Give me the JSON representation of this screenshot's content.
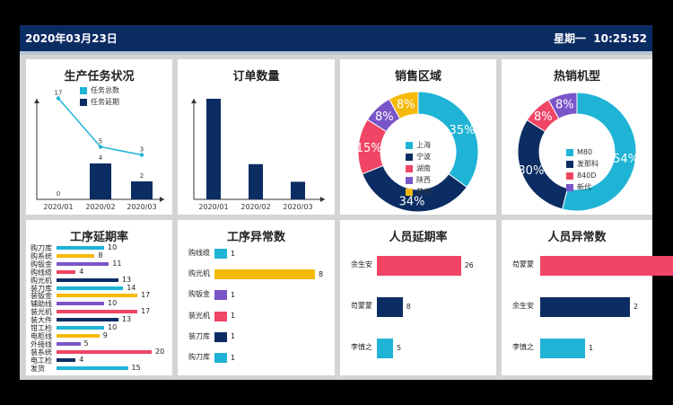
{
  "header": {
    "date": "2020年03月23日",
    "time": "星期一  10:25:52"
  },
  "colors": {
    "cyan": "#1fb3d6",
    "navy": "#0c2d63",
    "purple": "#7a55c8",
    "pink": "#f04565",
    "yellow": "#f5b90a",
    "gray": "#9b9b9b"
  },
  "chart_data": [
    {
      "type": "bar",
      "title": "生产任务状况",
      "categories": [
        "2020/01",
        "2020/02",
        "2020/03"
      ],
      "series": [
        {
          "name": "任务总数",
          "values": [
            17,
            5,
            3
          ],
          "render": "line"
        },
        {
          "name": "任务延期",
          "values": [
            0,
            4,
            2
          ],
          "render": "bar"
        }
      ]
    },
    {
      "type": "bar",
      "title": "订单数量",
      "categories": [
        "2020/01",
        "2020/02",
        "2020/03"
      ],
      "values": [
        20,
        7,
        3.5
      ]
    },
    {
      "type": "pie",
      "title": "销售区域",
      "labels": [
        "上海",
        "宁波",
        "湖南",
        "陕西",
        "其他"
      ],
      "values": [
        35,
        34,
        15,
        8,
        8
      ]
    },
    {
      "type": "pie",
      "title": "热销机型",
      "labels": [
        "M80",
        "发那科",
        "840D",
        "新代"
      ],
      "values": [
        54,
        30,
        8,
        8
      ]
    },
    {
      "type": "bar",
      "title": "工序延期率",
      "categories": [
        "购刀库",
        "购系统",
        "购钣金",
        "购线缆",
        "购光机",
        "装刀库",
        "装钣金",
        "辅助线",
        "装光机",
        "装大件",
        "钳工检",
        "电柜线",
        "外接线",
        "装系统",
        "电工检",
        "发货"
      ],
      "values": [
        10,
        8,
        11,
        4,
        13,
        14,
        17,
        10,
        17,
        13,
        10,
        9,
        5,
        20,
        4,
        15
      ]
    },
    {
      "type": "bar",
      "title": "工序异常数",
      "categories": [
        "购线缆",
        "购光机",
        "购钣金",
        "装光机",
        "装刀库",
        "购刀库"
      ],
      "values": [
        1,
        8,
        1,
        1,
        1,
        1
      ]
    },
    {
      "type": "bar",
      "title": "人员延期率",
      "categories": [
        "余生安",
        "苟蒙蒙",
        "李慎之"
      ],
      "values": [
        26,
        8,
        5
      ]
    },
    {
      "type": "bar",
      "title": "人员异常数",
      "categories": [
        "苟蒙蒙",
        "余生安",
        "李慎之"
      ],
      "values": [
        3,
        2,
        1
      ]
    }
  ]
}
